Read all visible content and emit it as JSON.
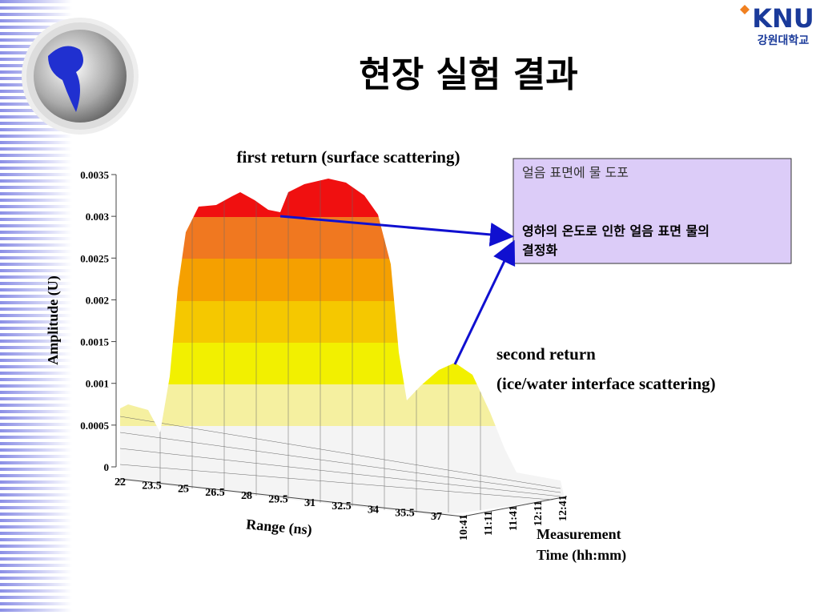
{
  "header": {
    "title": "현장 실험 결과",
    "logo": {
      "name": "KNU",
      "subtitle": "강원대학교"
    }
  },
  "chart": {
    "title": "first return (surface scattering)",
    "z_axis": {
      "label": "Amplitude (U)",
      "lim": [
        0,
        0.0035
      ],
      "ticks": [
        0,
        0.0005,
        0.001,
        0.0015,
        0.002,
        0.0025,
        0.003,
        0.0035
      ]
    },
    "x_axis": {
      "label": "Range (ns)",
      "ticks": [
        22,
        23.5,
        25,
        26.5,
        28,
        29.5,
        31,
        32.5,
        34,
        35.5,
        37
      ]
    },
    "y_axis": {
      "label_lines": [
        "Measurement",
        "Time (hh:mm)"
      ],
      "ticks": [
        "10:41",
        "11:11",
        "11:41",
        "12:11",
        "12:41"
      ]
    },
    "annotation": [
      "second return",
      "(ice/water interface scattering)"
    ]
  },
  "callout": {
    "title": "얼음 표면에 물 도포",
    "body_lines": [
      "영하의 온도로 인한 얼음 표면 물의",
      "결정화"
    ]
  }
}
